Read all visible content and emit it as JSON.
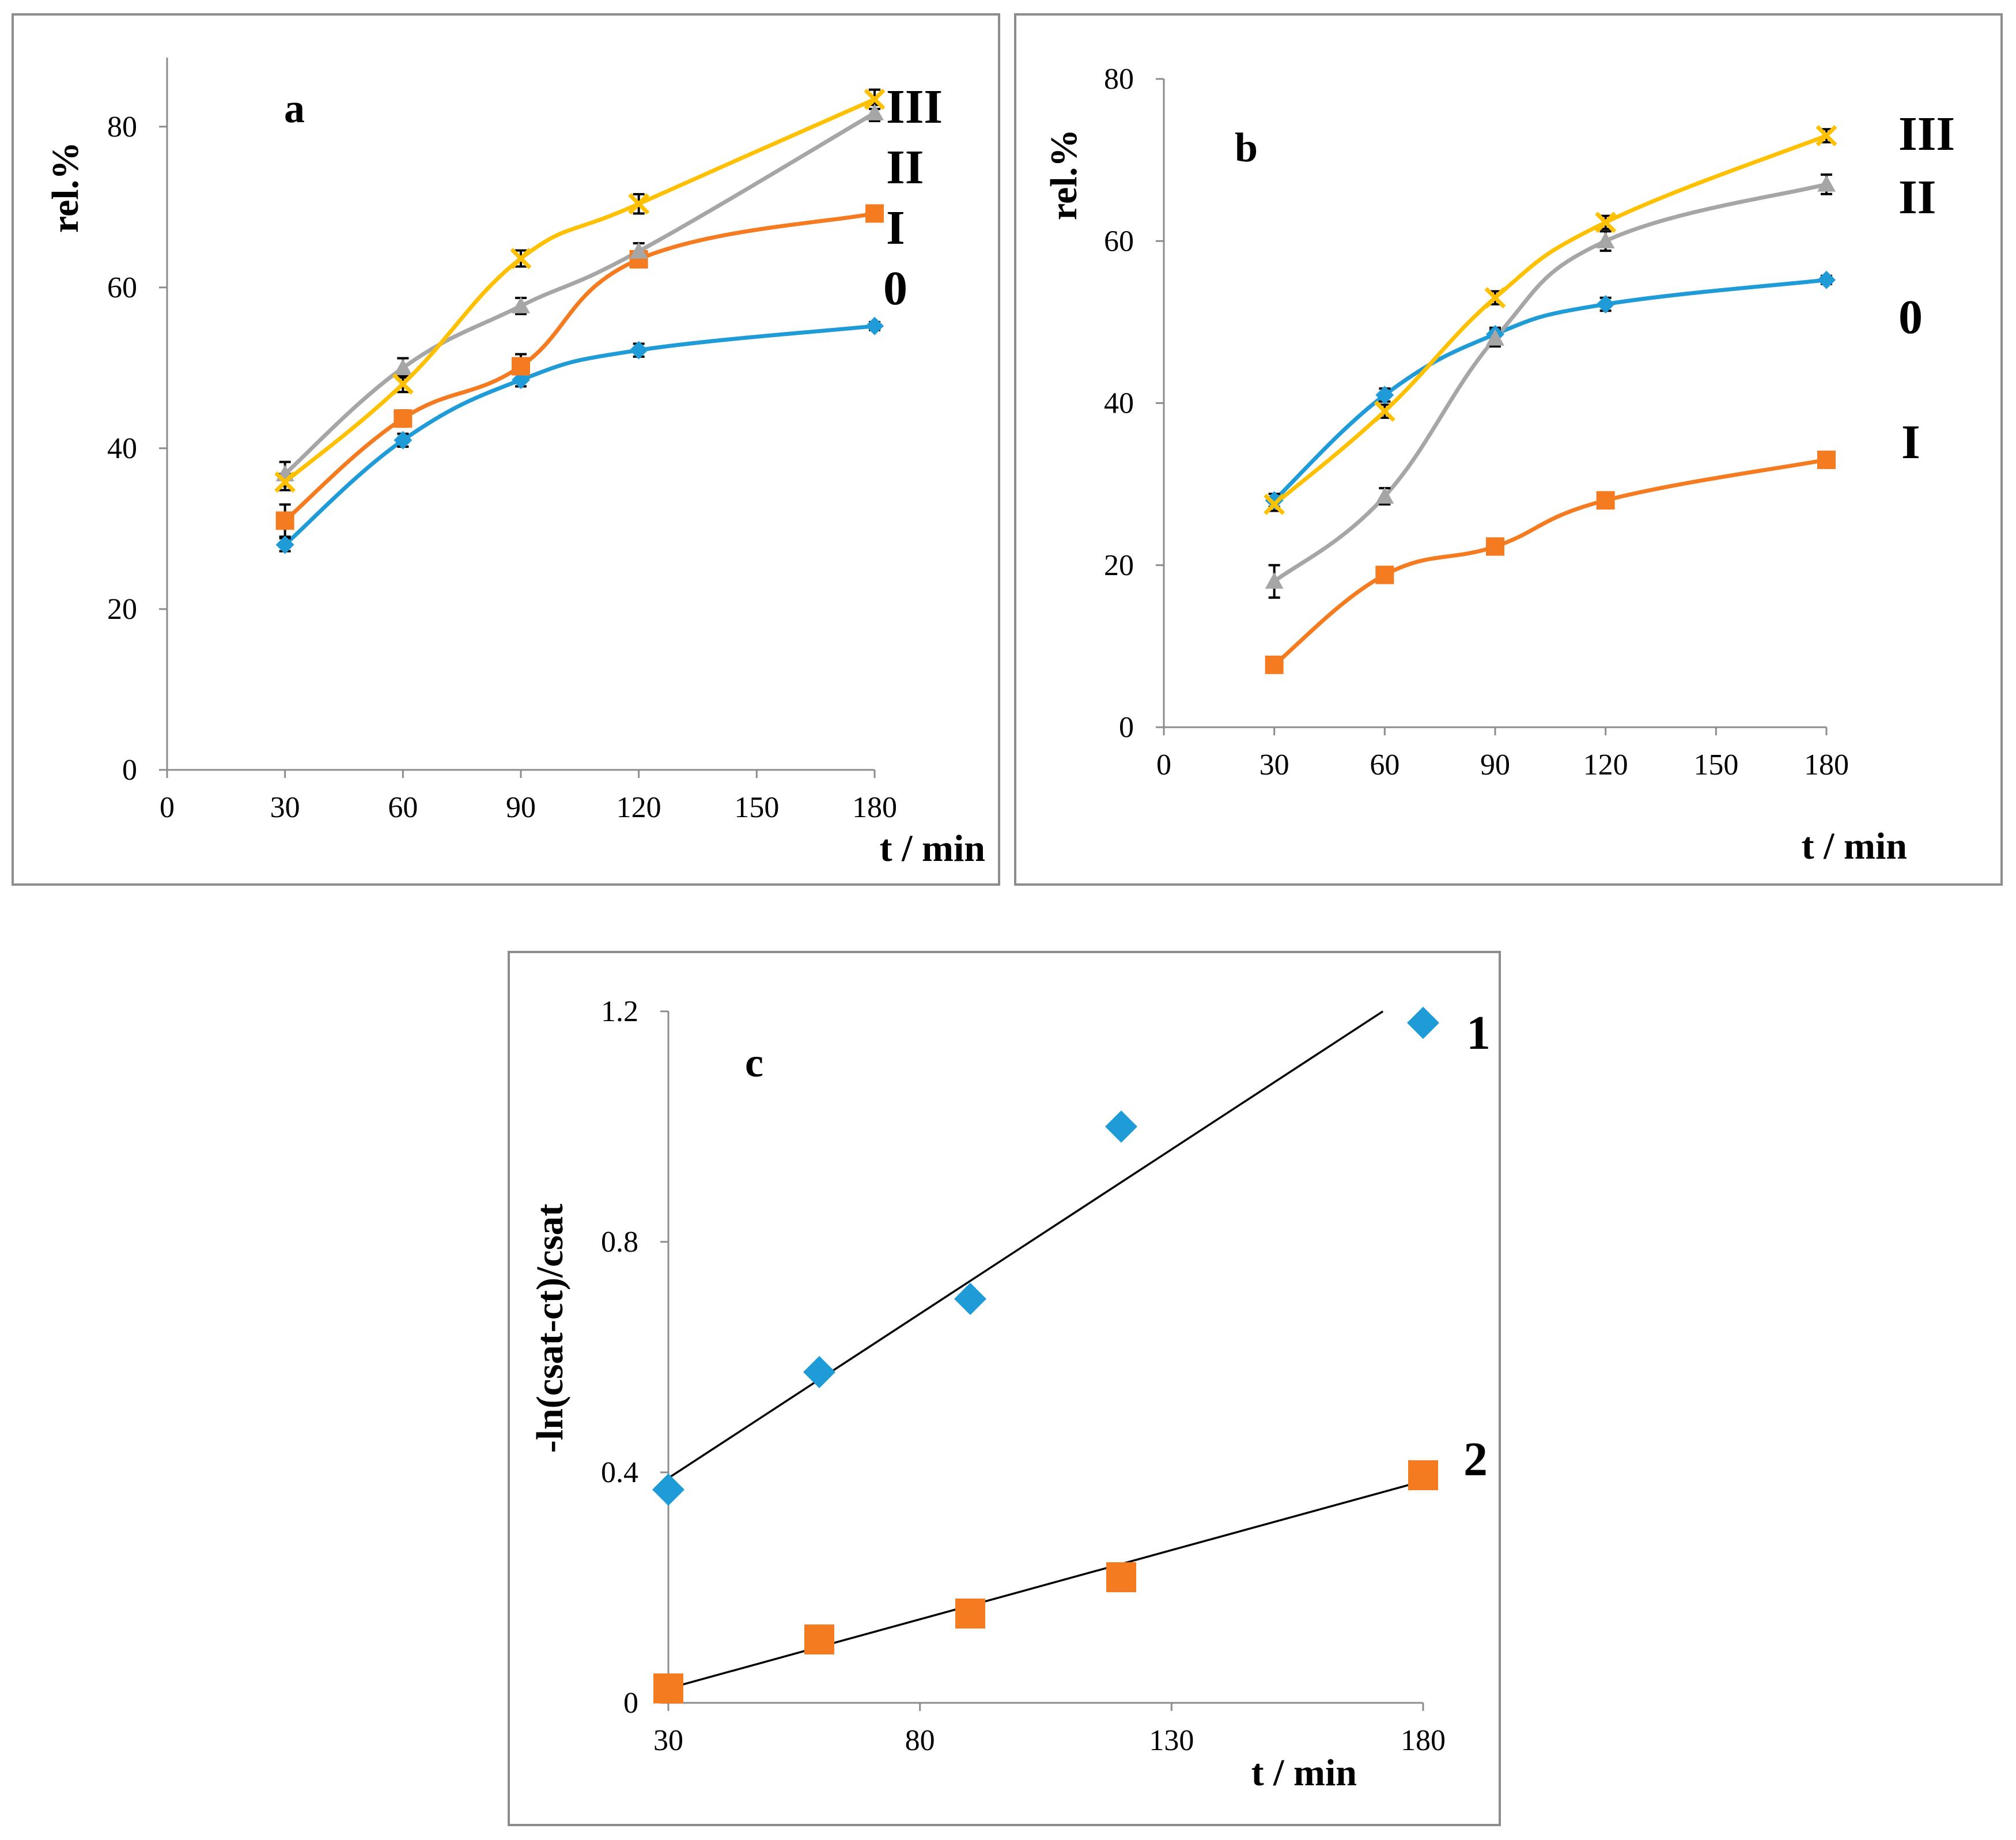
{
  "colors": {
    "series_0": "#1f9bd7",
    "series_I": "#f47b20",
    "series_II": "#a6a6a6",
    "series_III": "#ffc000",
    "frame": "#8c8c8c",
    "fit_line": "#000000"
  },
  "chart_data": [
    {
      "id": "a",
      "type": "line",
      "panel_label": "a",
      "xlabel": "t / min",
      "ylabel": "rel.%",
      "xlim": [
        0,
        180
      ],
      "ylim": [
        0,
        85
      ],
      "xticks": [
        0,
        30,
        60,
        90,
        120,
        150,
        180
      ],
      "yticks": [
        0,
        20,
        40,
        60,
        80
      ],
      "x": [
        30,
        60,
        90,
        120,
        180
      ],
      "series": [
        {
          "name": "0",
          "color": "#1f9bd7",
          "marker": "diamond",
          "values": [
            28,
            41,
            48.5,
            52.2,
            55.2
          ],
          "errors": [
            0.8,
            0.8,
            0.8,
            0.8,
            0.5
          ]
        },
        {
          "name": "I",
          "color": "#f47b20",
          "marker": "square",
          "values": [
            31,
            43.7,
            50.2,
            63.5,
            69.2
          ],
          "errors": [
            2.0,
            1.0,
            1.5,
            1.0,
            0.5
          ]
        },
        {
          "name": "II",
          "color": "#a6a6a6",
          "marker": "triangle",
          "values": [
            36.8,
            50,
            57.7,
            64.5,
            81.7
          ],
          "errors": [
            1.5,
            1.2,
            1.0,
            1.0,
            1.0
          ]
        },
        {
          "name": "III",
          "color": "#ffc000",
          "marker": "cross",
          "values": [
            35.8,
            48,
            63.6,
            70.4,
            83.4
          ],
          "errors": [
            1.0,
            1.0,
            1.0,
            1.2,
            1.2
          ]
        }
      ],
      "series_labels": [
        "III",
        "II",
        "I",
        "0"
      ]
    },
    {
      "id": "b",
      "type": "line",
      "panel_label": "b",
      "xlabel": "t / min",
      "ylabel": "rel.%",
      "xlim": [
        0,
        180
      ],
      "ylim": [
        0,
        80
      ],
      "xticks": [
        0,
        30,
        60,
        90,
        120,
        150,
        180
      ],
      "yticks": [
        0,
        20,
        40,
        60,
        80
      ],
      "x": [
        30,
        60,
        90,
        120,
        180
      ],
      "series": [
        {
          "name": "0",
          "color": "#1f9bd7",
          "marker": "diamond",
          "values": [
            28,
            41,
            48.5,
            52.2,
            55.2
          ],
          "errors": [
            0.8,
            0.8,
            0.8,
            0.8,
            0.5
          ]
        },
        {
          "name": "I",
          "color": "#f47b20",
          "marker": "square",
          "values": [
            7.7,
            18.8,
            22.3,
            28,
            33
          ],
          "errors": [
            0.5,
            0.5,
            0.5,
            0.5,
            0.5
          ]
        },
        {
          "name": "II",
          "color": "#a6a6a6",
          "marker": "triangle",
          "values": [
            18,
            28.5,
            48,
            60,
            67
          ],
          "errors": [
            2.0,
            1.0,
            1.0,
            1.2,
            1.2
          ]
        },
        {
          "name": "III",
          "color": "#ffc000",
          "marker": "cross",
          "values": [
            27.5,
            39,
            53,
            62.3,
            73
          ],
          "errors": [
            0.8,
            0.8,
            0.8,
            0.8,
            0.8
          ]
        }
      ],
      "series_labels": [
        "III",
        "II",
        "0",
        "I"
      ]
    },
    {
      "id": "c",
      "type": "scatter",
      "panel_label": "c",
      "xlabel": "t / min",
      "ylabel": "-ln(csat-ct)/csat",
      "xlim": [
        30,
        180
      ],
      "ylim": [
        0,
        1.2
      ],
      "xticks": [
        30,
        80,
        130,
        180
      ],
      "yticks": [
        0,
        0.4,
        0.8,
        1.2
      ],
      "ytick_labels": [
        "0",
        "0.4",
        "0.8",
        "1.2"
      ],
      "x": [
        30,
        60,
        90,
        120,
        180
      ],
      "series": [
        {
          "name": "1",
          "color": "#1f9bd7",
          "marker": "diamond",
          "values": [
            0.37,
            0.574,
            0.701,
            1.0,
            1.18
          ],
          "fit": {
            "x": [
              30,
              172
            ],
            "y": [
              0.39,
              1.2
            ]
          }
        },
        {
          "name": "2",
          "color": "#f47b20",
          "marker": "square",
          "values": [
            0.025,
            0.11,
            0.155,
            0.218,
            0.395
          ],
          "fit": {
            "x": [
              30,
              180
            ],
            "y": [
              0.025,
              0.385
            ]
          }
        }
      ],
      "series_labels": [
        "1",
        "2"
      ]
    }
  ]
}
